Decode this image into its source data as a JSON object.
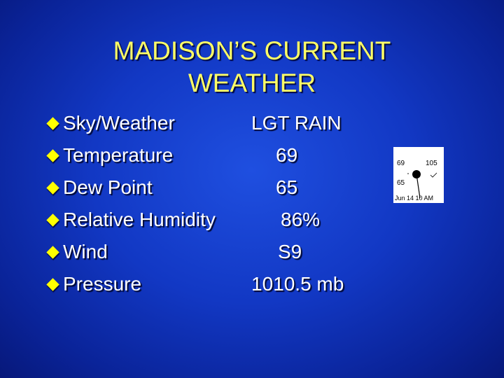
{
  "title": {
    "line1": "MADISON’S CURRENT",
    "line2": "WEATHER"
  },
  "items": [
    {
      "label": "Sky/Weather",
      "value": "LGT RAIN"
    },
    {
      "label": "Temperature",
      "value": "69"
    },
    {
      "label": "Dew Point",
      "value": "65"
    },
    {
      "label": "Relative Humidity",
      "value": "86%"
    },
    {
      "label": "Wind",
      "value": "S9"
    },
    {
      "label": "Pressure",
      "value": "1010.5 mb"
    }
  ],
  "station_plot": {
    "temperature": "69",
    "pressure": "105",
    "dew_point": "65",
    "timestamp": "Jun 14 10 AM"
  },
  "colors": {
    "title": "#ffff66",
    "bullet": "#ffff00",
    "background": "#1238c4"
  }
}
